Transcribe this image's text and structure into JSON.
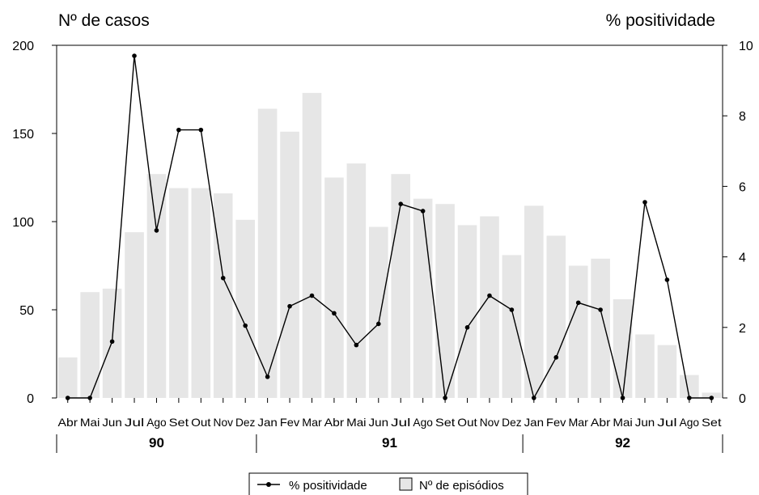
{
  "chart_data": {
    "type": "bar+line",
    "left_axis_title": "Nº de casos",
    "right_axis_title": "% positividade",
    "left_ylim": [
      0,
      200
    ],
    "left_yticks": [
      "0",
      "50",
      "100",
      "150",
      "200"
    ],
    "right_ylim": [
      0,
      10
    ],
    "right_yticks": [
      "0",
      "2",
      "4",
      "6",
      "8",
      "10"
    ],
    "categories": [
      "Abr",
      "Mai",
      "Jun",
      "Jul",
      "Ago",
      "Set",
      "Out",
      "Nov",
      "Dez",
      "Jan",
      "Fev",
      "Mar",
      "Abr",
      "Mai",
      "Jun",
      "Jul",
      "Ago",
      "Set",
      "Out",
      "Nov",
      "Dez",
      "Jan",
      "Fev",
      "Mar",
      "Abr",
      "Mai",
      "Jun",
      "Jul",
      "Ago",
      "Set"
    ],
    "years": [
      {
        "label": "90",
        "start": 0,
        "end": 9
      },
      {
        "label": "91",
        "start": 9,
        "end": 21
      },
      {
        "label": "92",
        "start": 21,
        "end": 30
      }
    ],
    "series": [
      {
        "name": "Nº de episódios",
        "type": "bar",
        "axis": "left",
        "color": "#e6e6e6",
        "values": [
          23,
          60,
          62,
          94,
          127,
          119,
          119,
          116,
          101,
          164,
          151,
          173,
          125,
          133,
          97,
          127,
          113,
          110,
          98,
          103,
          81,
          109,
          92,
          75,
          79,
          56,
          36,
          30,
          13,
          3
        ]
      },
      {
        "name": "% positividade",
        "type": "line",
        "axis": "right",
        "color": "#000000",
        "values": [
          0,
          0,
          1.6,
          9.7,
          4.75,
          7.6,
          7.6,
          3.4,
          2.05,
          0.6,
          2.6,
          2.9,
          2.4,
          1.5,
          2.1,
          5.5,
          5.3,
          0,
          2.0,
          2.9,
          2.5,
          0,
          1.15,
          2.7,
          2.5,
          0,
          5.55,
          3.35,
          0,
          0
        ]
      }
    ],
    "legend": {
      "position": "bottom-center",
      "items": [
        "% positividade",
        "Nº de episódios"
      ]
    }
  }
}
